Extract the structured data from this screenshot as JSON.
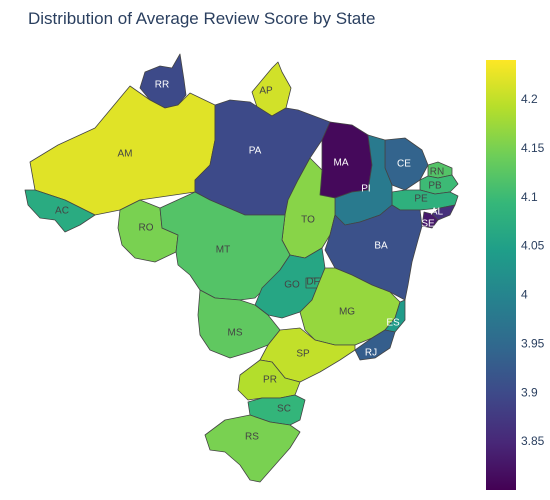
{
  "title": "Distribution of Average Review Score by State",
  "chart_data": {
    "type": "choropleth",
    "title": "Distribution of Average Review Score by State",
    "colorscale": "Viridis",
    "color_range": [
      3.8,
      4.24
    ],
    "colorbar_ticks": [
      "4.2",
      "4.15",
      "4.1",
      "4.05",
      "4",
      "3.95",
      "3.9",
      "3.85"
    ],
    "colorbar_tick_values": [
      4.2,
      4.15,
      4.1,
      4.05,
      4.0,
      3.95,
      3.9,
      3.85
    ],
    "states": [
      {
        "code": "RR",
        "value": 3.9
      },
      {
        "code": "AP",
        "value": 4.21
      },
      {
        "code": "AM",
        "value": 4.22
      },
      {
        "code": "PA",
        "value": 3.9
      },
      {
        "code": "MA",
        "value": 3.81
      },
      {
        "code": "CE",
        "value": 3.94
      },
      {
        "code": "RN",
        "value": 4.12
      },
      {
        "code": "PB",
        "value": 4.1
      },
      {
        "code": "PE",
        "value": 4.08
      },
      {
        "code": "AL",
        "value": 3.86
      },
      {
        "code": "SE",
        "value": 3.83
      },
      {
        "code": "PI",
        "value": 3.98
      },
      {
        "code": "AC",
        "value": 4.07
      },
      {
        "code": "RO",
        "value": 4.15
      },
      {
        "code": "TO",
        "value": 4.16
      },
      {
        "code": "BA",
        "value": 3.91
      },
      {
        "code": "MT",
        "value": 4.12
      },
      {
        "code": "GO",
        "value": 4.06
      },
      {
        "code": "DF",
        "value": 4.07
      },
      {
        "code": "MG",
        "value": 4.17
      },
      {
        "code": "ES",
        "value": 4.04
      },
      {
        "code": "MS",
        "value": 4.13
      },
      {
        "code": "RJ",
        "value": 3.93
      },
      {
        "code": "SP",
        "value": 4.2
      },
      {
        "code": "PR",
        "value": 4.19
      },
      {
        "code": "SC",
        "value": 4.09
      },
      {
        "code": "RS",
        "value": 4.15
      }
    ]
  }
}
